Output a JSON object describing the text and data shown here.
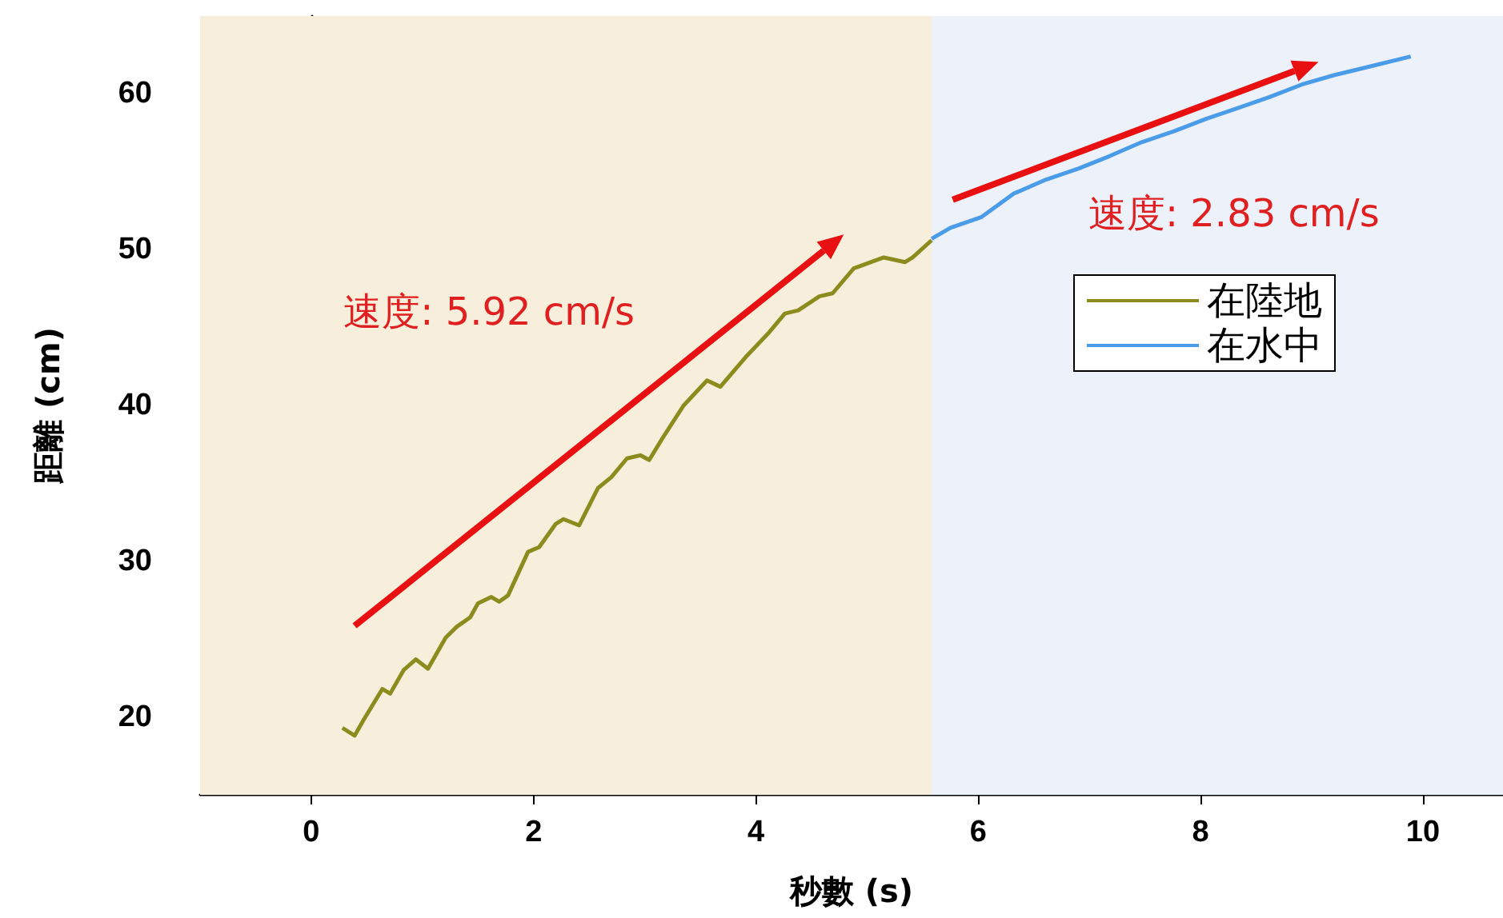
{
  "chart_data": {
    "type": "line",
    "xlabel": "秒數 (s)",
    "ylabel": "距離 (cm)",
    "xlim": [
      -1,
      10.72
    ],
    "xticks": [
      0,
      2,
      4,
      6,
      8,
      10
    ],
    "ylim": [
      15,
      65
    ],
    "yticks": [
      20,
      30,
      40,
      50,
      60
    ],
    "legend": "right",
    "marker": "none",
    "line_style": "solid",
    "bands": [
      {
        "axis": "x",
        "from": -1,
        "to": 5.58,
        "color": "#f7efdc"
      },
      {
        "axis": "x",
        "from": 5.58,
        "to": 10.72,
        "color": "#edf2fa"
      }
    ],
    "annotations": [
      "速度: 5.92 cm/s",
      "速度: 2.83 cm/s"
    ],
    "series": [
      {
        "name": "在陸地",
        "color": "#8c8c1e",
        "x": [
          0.28,
          0.39,
          0.47,
          0.64,
          0.71,
          0.83,
          0.94,
          1.05,
          1.21,
          1.31,
          1.43,
          1.5,
          1.62,
          1.69,
          1.77,
          1.95,
          2.05,
          2.2,
          2.27,
          2.41,
          2.58,
          2.7,
          2.84,
          2.96,
          3.04,
          3.16,
          3.35,
          3.56,
          3.68,
          3.92,
          4.12,
          4.26,
          4.38,
          4.57,
          4.69,
          4.88,
          5.15,
          5.34,
          5.41,
          5.58
        ],
        "values": [
          19.3,
          18.8,
          19.8,
          21.8,
          21.5,
          23.0,
          23.7,
          23.1,
          25.1,
          25.8,
          26.4,
          27.3,
          27.7,
          27.4,
          27.8,
          30.6,
          30.9,
          32.4,
          32.7,
          32.3,
          34.7,
          35.4,
          36.6,
          36.8,
          36.5,
          37.9,
          40.0,
          41.6,
          41.2,
          43.2,
          44.7,
          45.9,
          46.1,
          47.0,
          47.2,
          48.8,
          49.5,
          49.2,
          49.5,
          50.6
        ]
      },
      {
        "name": "在水中",
        "color": "#4a9ce8",
        "x": [
          5.58,
          5.75,
          6.03,
          6.32,
          6.61,
          6.9,
          7.18,
          7.47,
          7.76,
          8.05,
          8.34,
          8.62,
          8.91,
          9.2,
          9.49,
          9.89
        ],
        "values": [
          50.7,
          51.4,
          52.1,
          53.6,
          54.5,
          55.2,
          56.0,
          56.9,
          57.6,
          58.4,
          59.1,
          59.8,
          60.6,
          61.2,
          61.7,
          62.4
        ]
      }
    ]
  }
}
